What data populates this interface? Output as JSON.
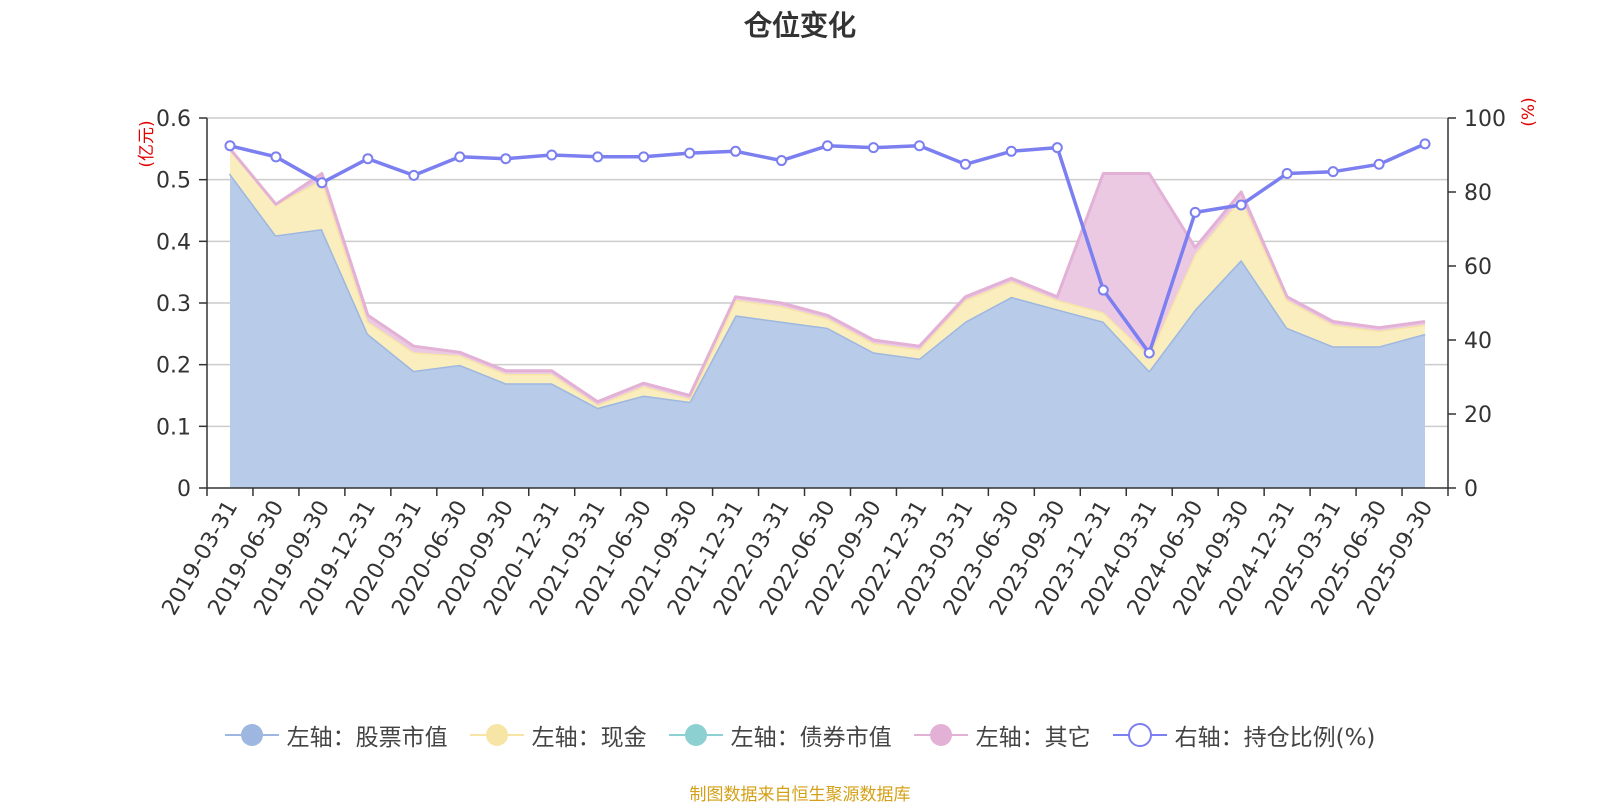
{
  "chart_data": {
    "type": "area",
    "title": "仓位变化",
    "source_note": "制图数据来自恒生聚源数据库",
    "categories": [
      "2019-03-31",
      "2019-06-30",
      "2019-09-30",
      "2019-12-31",
      "2020-03-31",
      "2020-06-30",
      "2020-09-30",
      "2020-12-31",
      "2021-03-31",
      "2021-06-30",
      "2021-09-30",
      "2021-12-31",
      "2022-03-31",
      "2022-06-30",
      "2022-09-30",
      "2022-12-31",
      "2023-03-31",
      "2023-06-30",
      "2023-09-30",
      "2023-12-31",
      "2024-03-31",
      "2024-06-30",
      "2024-09-30",
      "2024-12-31",
      "2025-03-31",
      "2025-06-30",
      "2025-09-30"
    ],
    "left_axis": {
      "unit": "(亿元)",
      "ylim": [
        0,
        0.6
      ],
      "ticks": [
        "0",
        "0.1",
        "0.2",
        "0.3",
        "0.4",
        "0.5",
        "0.6"
      ]
    },
    "right_axis": {
      "unit": "(%)",
      "ylim": [
        0,
        100
      ],
      "ticks": [
        "0",
        "20",
        "40",
        "60",
        "80",
        "100"
      ]
    },
    "grid": true,
    "legend_position": "bottom",
    "series": [
      {
        "name": "左轴：股票市值",
        "axis": "left",
        "kind": "stacked-area",
        "color": "#9db7e0",
        "fill": "#b8cbe8",
        "values": [
          0.51,
          0.41,
          0.42,
          0.25,
          0.19,
          0.2,
          0.17,
          0.17,
          0.13,
          0.15,
          0.14,
          0.28,
          0.27,
          0.26,
          0.22,
          0.21,
          0.27,
          0.31,
          0.29,
          0.27,
          0.19,
          0.29,
          0.37,
          0.26,
          0.23,
          0.23,
          0.25
        ]
      },
      {
        "name": "左轴：现金",
        "axis": "left",
        "kind": "stacked-area",
        "color": "#f7e5a6",
        "fill": "#faeebf",
        "values": [
          0.04,
          0.05,
          0.08,
          0.02,
          0.03,
          0.015,
          0.015,
          0.015,
          0.005,
          0.015,
          0.005,
          0.025,
          0.025,
          0.015,
          0.015,
          0.015,
          0.035,
          0.025,
          0.015,
          0.015,
          0.025,
          0.09,
          0.1,
          0.045,
          0.035,
          0.025,
          0.015
        ]
      },
      {
        "name": "左轴：债券市值",
        "axis": "left",
        "kind": "stacked-area",
        "color": "#8dd0d2",
        "fill": "#a9dcdd",
        "values": [
          0,
          0,
          0,
          0,
          0,
          0,
          0,
          0,
          0,
          0,
          0,
          0,
          0,
          0,
          0,
          0,
          0,
          0,
          0,
          0,
          0,
          0,
          0,
          0,
          0,
          0,
          0
        ]
      },
      {
        "name": "左轴：其它",
        "axis": "left",
        "kind": "stacked-area",
        "color": "#e3b1d6",
        "fill": "#ecc9e3",
        "values": [
          0,
          0,
          0.01,
          0.01,
          0.01,
          0.005,
          0.005,
          0.005,
          0.005,
          0.005,
          0.005,
          0.005,
          0.005,
          0.005,
          0.005,
          0.005,
          0.005,
          0.005,
          0.005,
          0.225,
          0.295,
          0.01,
          0.01,
          0.005,
          0.005,
          0.005,
          0.005
        ]
      },
      {
        "name": "右轴：持仓比例(%)",
        "axis": "right",
        "kind": "line",
        "color": "#7b7ff0",
        "values": [
          92.5,
          89.5,
          82.5,
          89,
          84.5,
          89.5,
          89,
          90,
          89.5,
          89.5,
          90.5,
          91,
          88.5,
          92.5,
          92,
          92.5,
          87.5,
          91,
          92,
          53.5,
          36.5,
          74.5,
          76.5,
          85,
          85.5,
          87.5,
          93
        ]
      }
    ]
  }
}
